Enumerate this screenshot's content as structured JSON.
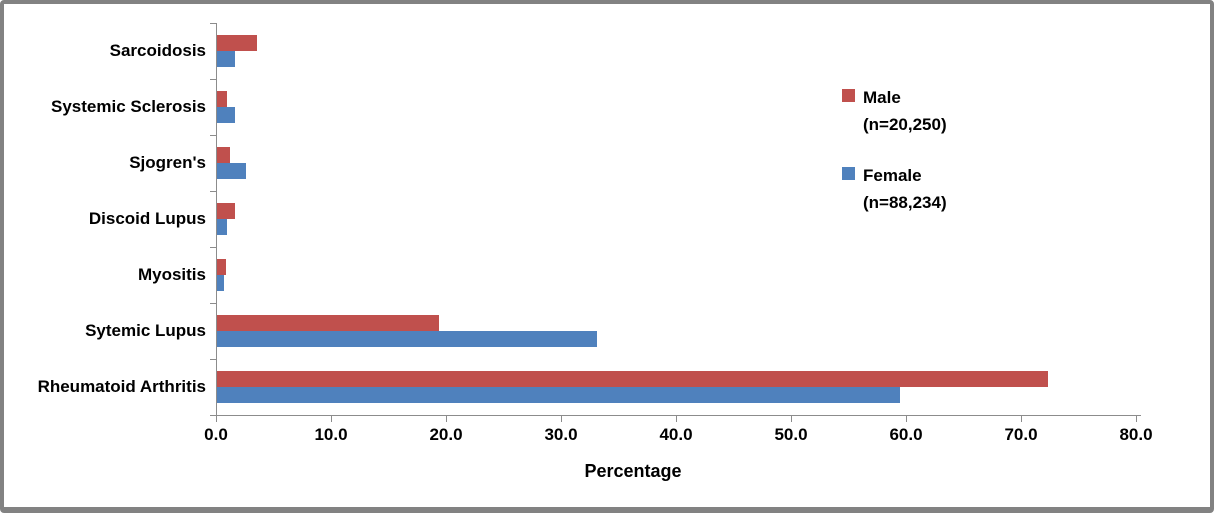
{
  "chart_data": {
    "type": "bar",
    "orientation": "horizontal",
    "title": "",
    "xlabel": "Percentage",
    "ylabel": "",
    "xlim": [
      0,
      80
    ],
    "xticks": [
      0,
      10,
      20,
      30,
      40,
      50,
      60,
      70,
      80
    ],
    "xtick_labels": [
      "0.0",
      "10.0",
      "20.0",
      "30.0",
      "40.0",
      "50.0",
      "60.0",
      "70.0",
      "80.0"
    ],
    "grid": false,
    "legend_position": "upper-right",
    "categories": [
      "Sarcoidosis",
      "Systemic Sclerosis",
      "Sjogren's",
      "Discoid Lupus",
      "Myositis",
      "Sytemic Lupus",
      "Rheumatoid Arthritis"
    ],
    "series": [
      {
        "name": "Male",
        "n_label": "(n=20,250)",
        "color": "#C0504D",
        "values": [
          3.5,
          0.9,
          1.1,
          1.6,
          0.8,
          19.3,
          72.3
        ]
      },
      {
        "name": "Female",
        "n_label": "(n=88,234)",
        "color": "#4F81BD",
        "values": [
          1.6,
          1.6,
          2.5,
          0.9,
          0.6,
          33.0,
          59.4
        ]
      }
    ]
  },
  "colors": {
    "male_bar": "#C0504D",
    "female_bar": "#4F81BD",
    "axis_line": "#8C8C8C",
    "text": "#000000",
    "frame_border": "#828282",
    "background": "#FFFFFF"
  }
}
